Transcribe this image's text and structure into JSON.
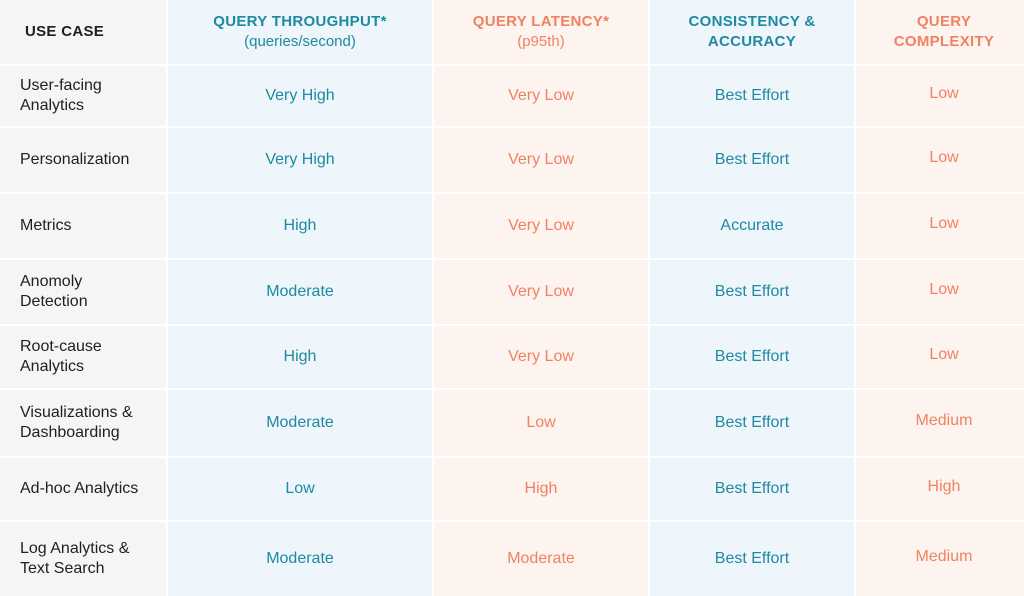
{
  "chart_data": {
    "type": "table",
    "columns": [
      {
        "title": "USE CASE",
        "subtitle": ""
      },
      {
        "title": "QUERY THROUGHPUT*",
        "subtitle": "(queries/second)"
      },
      {
        "title": "QUERY LATENCY*",
        "subtitle": "(p95th)"
      },
      {
        "title": "CONSISTENCY &\nACCURACY",
        "subtitle": ""
      },
      {
        "title": "QUERY\nCOMPLEXITY",
        "subtitle": ""
      }
    ],
    "rows": [
      {
        "use_case": "User-facing\nAnalytics",
        "throughput": "Very High",
        "latency": "Very Low",
        "consistency": "Best Effort",
        "complexity": "Low"
      },
      {
        "use_case": "Personalization",
        "throughput": "Very High",
        "latency": "Very Low",
        "consistency": "Best Effort",
        "complexity": "Low"
      },
      {
        "use_case": "Metrics",
        "throughput": "High",
        "latency": "Very Low",
        "consistency": "Accurate",
        "complexity": "Low"
      },
      {
        "use_case": "Anomoly\nDetection",
        "throughput": "Moderate",
        "latency": "Very Low",
        "consistency": "Best Effort",
        "complexity": "Low"
      },
      {
        "use_case": "Root-cause\nAnalytics",
        "throughput": "High",
        "latency": "Very Low",
        "consistency": "Best Effort",
        "complexity": "Low"
      },
      {
        "use_case": "Visualizations &\nDashboarding",
        "throughput": "Moderate",
        "latency": "Low",
        "consistency": "Best Effort",
        "complexity": "Medium"
      },
      {
        "use_case": "Ad-hoc Analytics",
        "throughput": "Low",
        "latency": "High",
        "consistency": "Best Effort",
        "complexity": "High"
      },
      {
        "use_case": "Log Analytics &\nText Search",
        "throughput": "Moderate",
        "latency": "Moderate",
        "consistency": "Best Effort",
        "complexity": "Medium"
      }
    ],
    "colors": {
      "teal_text": "#1e8aa0",
      "coral_text": "#f08262",
      "usecase_bg": "#f5f5f5",
      "blue_bg": "#eef5fb",
      "peach_bg": "#fdf4f0"
    }
  }
}
